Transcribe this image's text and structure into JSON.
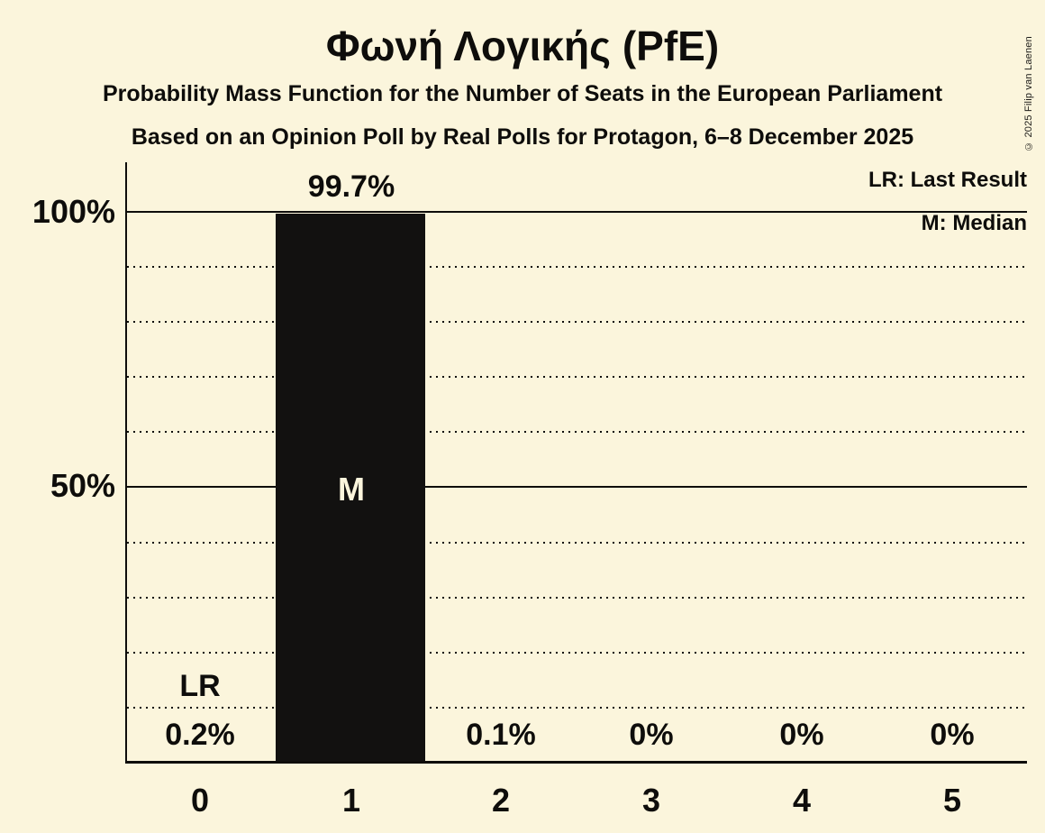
{
  "title": "Φωνή Λογικής (PfE)",
  "subtitle1": "Probability Mass Function for the Number of Seats in the European Parliament",
  "subtitle2": "Based on an Opinion Poll by Real Polls for Protagon, 6–8 December 2025",
  "copyright": "© 2025 Filip van Laenen",
  "legend": {
    "last_result": "LR: Last Result",
    "median": "M: Median"
  },
  "y_axis": {
    "label_100": "100%",
    "label_50": "50%"
  },
  "chart_data": {
    "type": "bar",
    "title": "Φωνή Λογικής (PfE)",
    "xlabel": "Number of seats in the European Parliament",
    "ylabel": "Probability mass",
    "ylim": [
      0,
      100
    ],
    "categories": [
      "0",
      "1",
      "2",
      "3",
      "4",
      "5"
    ],
    "values": [
      0.2,
      99.7,
      0.1,
      0,
      0,
      0
    ],
    "value_labels": [
      "0.2%",
      "99.7%",
      "0.1%",
      "0%",
      "0%",
      "0%"
    ],
    "solid_gridlines_pct": [
      50,
      100
    ],
    "dotted_gridlines_pct": [
      10,
      20,
      30,
      40,
      60,
      70,
      80,
      90
    ],
    "legend_position": "top-right",
    "annotations": {
      "lr_label": "LR",
      "lr_seat": 0,
      "m_label": "M",
      "m_seat": 1
    },
    "colors": {
      "background": "#FBF5DC",
      "bar": "#121110",
      "ink": "#0E0D0B"
    }
  }
}
